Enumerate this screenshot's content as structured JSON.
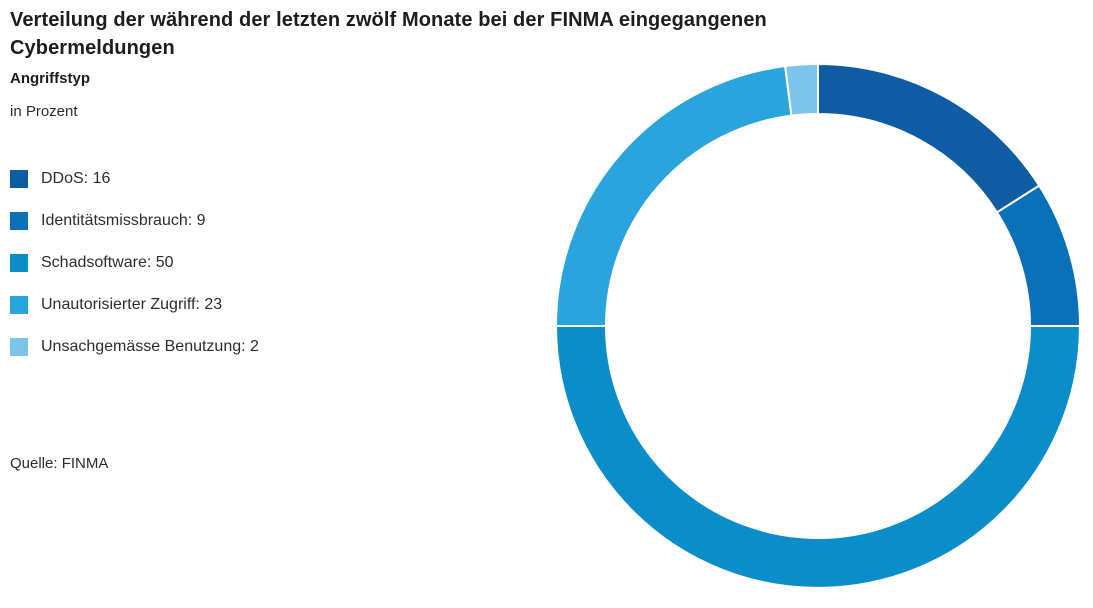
{
  "page": {
    "title_lines": [
      "Verteilung der während der letzten zwölf Monate bei der FINMA eingegangenen",
      "Cybermeldungen"
    ],
    "subtitle": "Angriffstyp",
    "unit_label": "in Prozent",
    "source": "Quelle: FINMA"
  },
  "chart_data": {
    "type": "pie",
    "variant": "donut",
    "title": "Verteilung der während der letzten zwölf Monate bei der FINMA eingegangenen Cybermeldungen",
    "subtitle": "Angriffstyp",
    "unit": "in Prozent",
    "source": "Quelle: FINMA",
    "start_angle_deg": 0,
    "direction": "clockwise",
    "inner_radius_ratio": 0.81,
    "legend_position": "left",
    "legend_format": "{label}: {value}",
    "separator_color": "#ffffff",
    "segments": [
      {
        "label": "DDoS",
        "value": 16,
        "color": "#0F5CA5"
      },
      {
        "label": "Identitätsmissbrauch",
        "value": 9,
        "color": "#0A70B7"
      },
      {
        "label": "Schadsoftware",
        "value": 50,
        "color": "#0A8DC9"
      },
      {
        "label": "Unautorisierter Zugriff",
        "value": 23,
        "color": "#2AA4DC"
      },
      {
        "label": "Unsachgemässe Benutzung",
        "value": 2,
        "color": "#7CC4EB"
      }
    ]
  }
}
